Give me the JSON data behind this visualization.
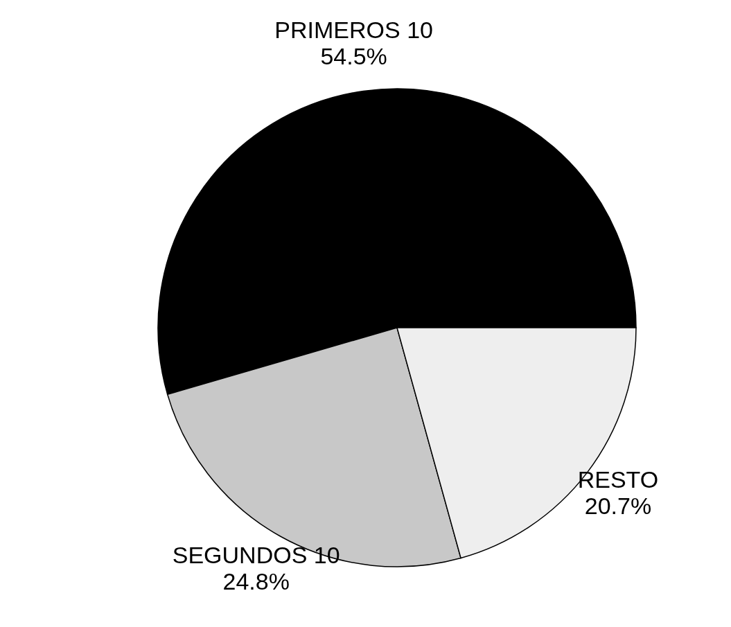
{
  "chart_data": {
    "type": "pie",
    "categories": [
      "PRIMEROS 10",
      "SEGUNDOS 10",
      "RESTO"
    ],
    "values": [
      54.5,
      24.8,
      20.7
    ],
    "value_labels": [
      "54.5%",
      "24.8%",
      "20.7%"
    ],
    "colors": [
      "#000000",
      "#c8c8c8",
      "#eeeeee"
    ],
    "legend": false
  }
}
